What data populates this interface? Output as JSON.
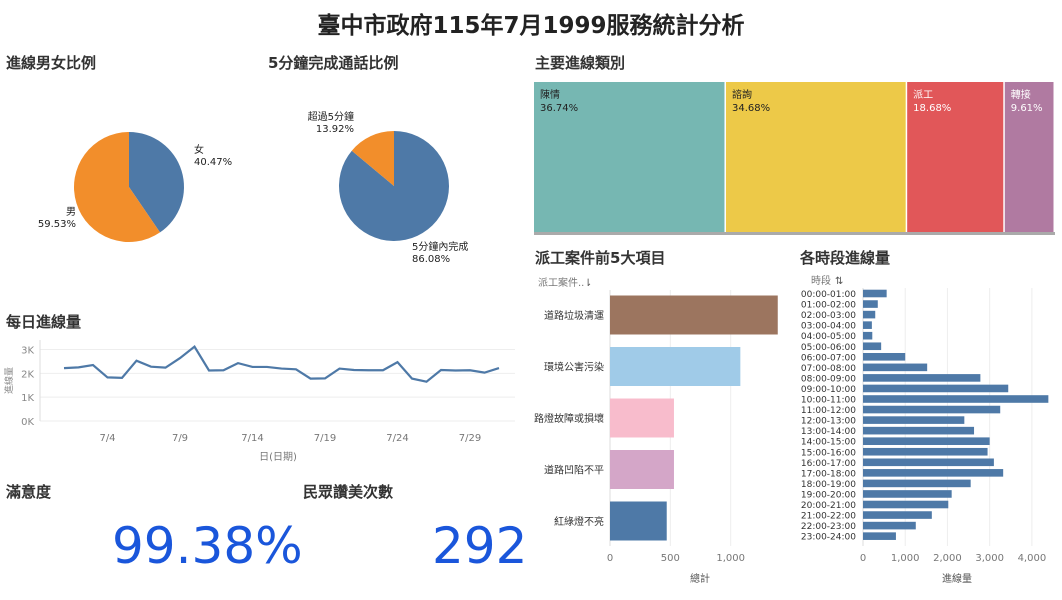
{
  "page": {
    "title": "臺中市政府115年7月1999服務統計分析"
  },
  "gender": {
    "title": "進線男女比例",
    "chart_data": {
      "type": "pie",
      "slices": [
        {
          "name": "女",
          "label": "女",
          "value": 40.47,
          "pct": "40.47%",
          "color": "#4e79a7"
        },
        {
          "name": "男",
          "label": "男",
          "value": 59.53,
          "pct": "59.53%",
          "color": "#f28e2b"
        }
      ]
    }
  },
  "five_min": {
    "title": "5分鐘完成通話比例",
    "chart_data": {
      "type": "pie",
      "slices": [
        {
          "name": "5分鐘內完成",
          "label": "5分鐘內完成",
          "value": 86.08,
          "pct": "86.08%",
          "color": "#4e79a7"
        },
        {
          "name": "超過5分鐘",
          "label": "超過5分鐘",
          "value": 13.92,
          "pct": "13.92%",
          "color": "#f28e2b"
        }
      ]
    }
  },
  "categories": {
    "title": "主要進線類別",
    "chart_data": {
      "type": "treemap",
      "items": [
        {
          "name": "陳情",
          "pct": "36.74%",
          "value": 36.74,
          "color": "#76b7b2"
        },
        {
          "name": "諮詢",
          "pct": "34.68%",
          "value": 34.68,
          "color": "#edc948"
        },
        {
          "name": "派工",
          "pct": "18.68%",
          "value": 18.68,
          "color": "#e15759"
        },
        {
          "name": "轉接",
          "pct": "9.61%",
          "value": 9.61,
          "color": "#b07aa1"
        }
      ]
    }
  },
  "daily": {
    "title": "每日進線量",
    "chart_data": {
      "type": "line",
      "xlabel": "日(日期)",
      "ylabel": "進線量",
      "yticks": [
        "3K",
        "2K",
        "1K",
        "0K"
      ],
      "ylim": [
        0,
        3400
      ],
      "xticks": [
        "7/4",
        "7/9",
        "7/14",
        "7/19",
        "7/24",
        "7/29"
      ],
      "x": [
        1,
        2,
        3,
        4,
        5,
        6,
        7,
        8,
        9,
        10,
        11,
        12,
        13,
        14,
        15,
        16,
        17,
        18,
        19,
        20,
        21,
        22,
        23,
        24,
        25,
        26,
        27,
        28,
        29,
        30,
        31
      ],
      "values": [
        2220,
        2250,
        2350,
        1830,
        1810,
        2530,
        2280,
        2240,
        2640,
        3120,
        2120,
        2130,
        2430,
        2270,
        2270,
        2200,
        2170,
        1780,
        1790,
        2200,
        2140,
        2130,
        2130,
        2470,
        1780,
        1650,
        2140,
        2120,
        2130,
        2030,
        2220
      ],
      "color": "#4e79a7"
    }
  },
  "dispatch": {
    "title": "派工案件前5大項目",
    "header_label": "派工案件..",
    "chart_data": {
      "type": "bar",
      "categories": [
        "道路垃圾清運",
        "環境公害污染",
        "路燈故障或損壞",
        "道路凹陷不平",
        "紅綠燈不亮"
      ],
      "values": [
        1390,
        1080,
        530,
        530,
        470
      ],
      "colors": [
        "#9c755f",
        "#a0cbe8",
        "#f8bccc",
        "#d4a6c8",
        "#4e79a7"
      ],
      "xticks": [
        "0",
        "500",
        "1,000"
      ],
      "xlim": [
        0,
        1450
      ],
      "xlabel": "總計"
    }
  },
  "hourly": {
    "title": "各時段進線量",
    "header_label": "時段",
    "chart_data": {
      "type": "bar",
      "categories": [
        "00:00-01:00",
        "01:00-02:00",
        "02:00-03:00",
        "03:00-04:00",
        "04:00-05:00",
        "05:00-06:00",
        "06:00-07:00",
        "07:00-08:00",
        "08:00-09:00",
        "09:00-10:00",
        "10:00-11:00",
        "11:00-12:00",
        "12:00-13:00",
        "13:00-14:00",
        "14:00-15:00",
        "15:00-16:00",
        "16:00-17:00",
        "17:00-18:00",
        "18:00-19:00",
        "19:00-20:00",
        "20:00-21:00",
        "21:00-22:00",
        "22:00-23:00",
        "23:00-24:00"
      ],
      "values": [
        560,
        350,
        290,
        210,
        220,
        430,
        1000,
        1520,
        2780,
        3440,
        4390,
        3250,
        2400,
        2630,
        3000,
        2950,
        3100,
        3320,
        2550,
        2100,
        2020,
        1630,
        1250,
        780
      ],
      "color": "#4e79a7",
      "xticks": [
        "0",
        "1,000",
        "2,000",
        "3,000",
        "4,000"
      ],
      "xlim": [
        0,
        4500
      ],
      "xlabel": "進線量"
    }
  },
  "satisfaction": {
    "title": "滿意度",
    "value": "99.38%"
  },
  "praise": {
    "title": "民眾讚美次數",
    "value": "292"
  }
}
